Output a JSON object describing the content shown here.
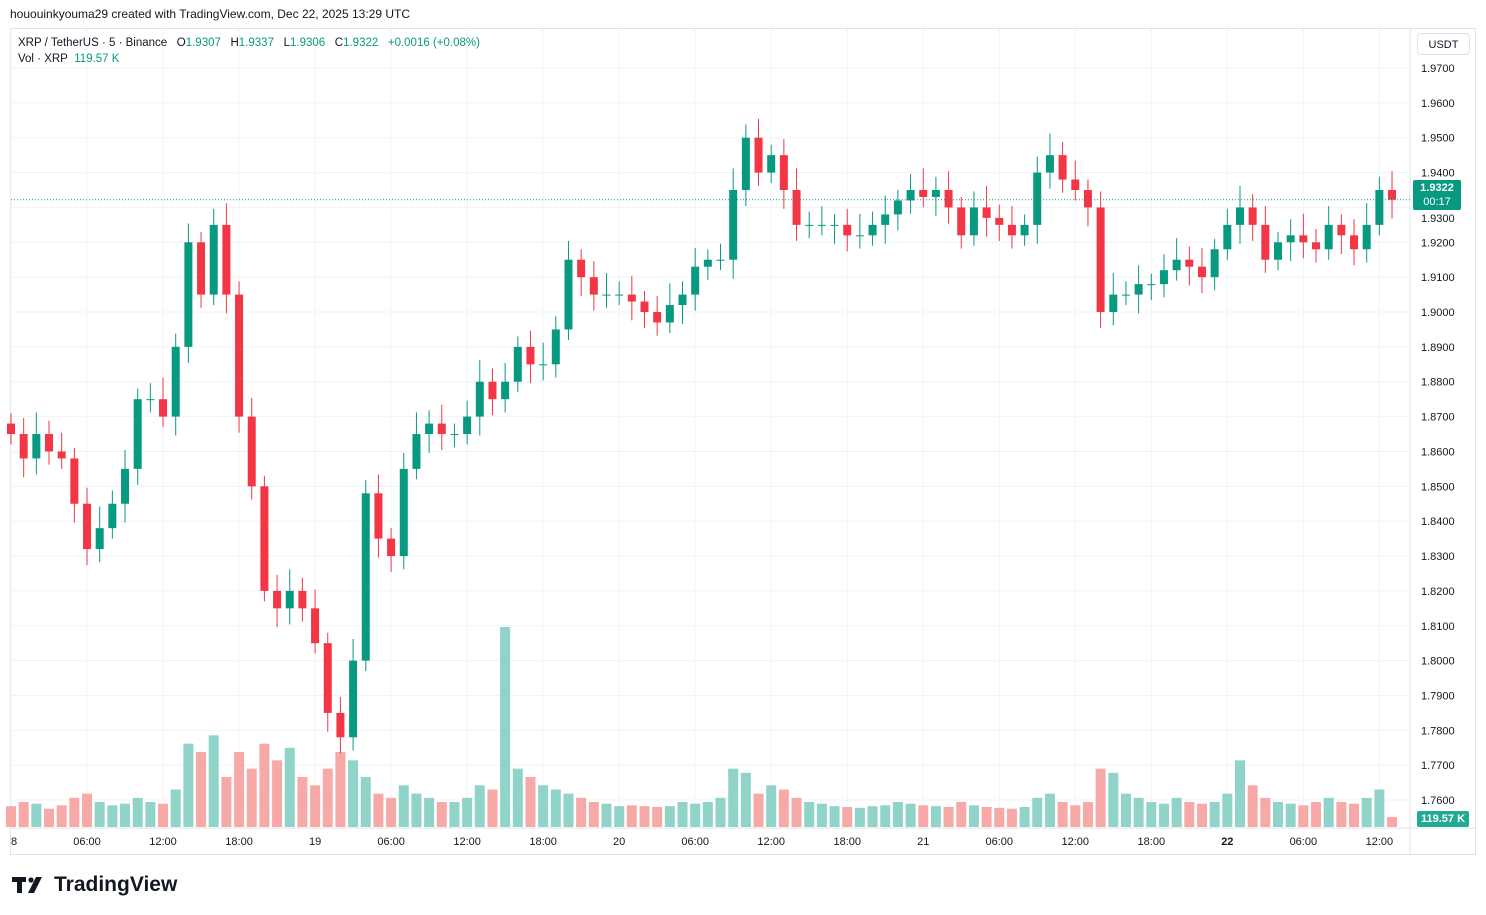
{
  "credit": "hououinkyouma29 created with TradingView.com, Dec 22, 2025 13:29 UTC",
  "legend": {
    "symbol": "XRP / TetherUS · 5 · Binance",
    "o_label": "O",
    "o": "1.9307",
    "h_label": "H",
    "h": "1.9337",
    "l_label": "L",
    "l": "1.9306",
    "c_label": "C",
    "c": "1.9322",
    "change": "+0.0016 (+0.08%)",
    "vol_label": "Vol · XRP",
    "vol": "119.57 K"
  },
  "currency": "USDT",
  "current_price": "1.9322",
  "countdown": "00:17",
  "volume_label": "119.57 K",
  "logo": "TradingView",
  "colors": {
    "up": "#089981",
    "down": "#f23645",
    "vol_up": "#8fd3c9",
    "vol_down": "#f7a9a7"
  },
  "chart_data": {
    "type": "candlestick",
    "note_resolution": "hourly approximation",
    "ylim": [
      1.755,
      1.975
    ],
    "y_ticks": [
      "1.9700",
      "1.9600",
      "1.9500",
      "1.9400",
      "1.9300",
      "1.9200",
      "1.9100",
      "1.9000",
      "1.8900",
      "1.8800",
      "1.8700",
      "1.8600",
      "1.8500",
      "1.8400",
      "1.8300",
      "1.8200",
      "1.8100",
      "1.8000",
      "1.7900",
      "1.7800",
      "1.7700",
      "1.7600"
    ],
    "x_ticks": [
      "8",
      "06:00",
      "12:00",
      "18:00",
      "19",
      "06:00",
      "12:00",
      "18:00",
      "20",
      "06:00",
      "12:00",
      "18:00",
      "21",
      "06:00",
      "12:00",
      "18:00",
      "22",
      "06:00",
      "12:00"
    ],
    "closes": [
      1.865,
      1.858,
      1.865,
      1.86,
      1.858,
      1.845,
      1.832,
      1.838,
      1.845,
      1.855,
      1.875,
      1.875,
      1.87,
      1.89,
      1.92,
      1.905,
      1.925,
      1.905,
      1.87,
      1.85,
      1.82,
      1.815,
      1.82,
      1.815,
      1.805,
      1.785,
      1.778,
      1.8,
      1.848,
      1.835,
      1.83,
      1.855,
      1.865,
      1.868,
      1.865,
      1.865,
      1.87,
      1.88,
      1.875,
      1.88,
      1.89,
      1.885,
      1.885,
      1.895,
      1.915,
      1.91,
      1.905,
      1.905,
      1.905,
      1.903,
      1.9,
      1.897,
      1.902,
      1.905,
      1.913,
      1.915,
      1.915,
      1.935,
      1.95,
      1.94,
      1.945,
      1.935,
      1.925,
      1.925,
      1.925,
      1.925,
      1.922,
      1.922,
      1.925,
      1.928,
      1.932,
      1.935,
      1.933,
      1.935,
      1.93,
      1.922,
      1.93,
      1.927,
      1.925,
      1.922,
      1.925,
      1.94,
      1.945,
      1.938,
      1.935,
      1.93,
      1.9,
      1.905,
      1.905,
      1.908,
      1.908,
      1.912,
      1.915,
      1.913,
      1.91,
      1.918,
      1.925,
      1.93,
      1.925,
      1.915,
      1.92,
      1.922,
      1.92,
      1.918,
      1.925,
      1.922,
      1.918,
      1.925,
      1.935,
      1.9322
    ],
    "volumes_k": [
      250,
      300,
      280,
      220,
      260,
      350,
      400,
      300,
      260,
      280,
      350,
      300,
      280,
      450,
      1000,
      900,
      1100,
      600,
      900,
      700,
      1000,
      800,
      950,
      600,
      500,
      700,
      900,
      800,
      600,
      400,
      350,
      500,
      400,
      350,
      300,
      300,
      350,
      500,
      450,
      2400,
      700,
      600,
      500,
      450,
      400,
      350,
      300,
      280,
      250,
      260,
      250,
      240,
      250,
      300,
      280,
      300,
      350,
      700,
      650,
      400,
      500,
      450,
      350,
      300,
      280,
      250,
      240,
      230,
      250,
      260,
      300,
      280,
      260,
      250,
      240,
      300,
      260,
      240,
      230,
      220,
      240,
      350,
      400,
      300,
      260,
      300,
      700,
      650,
      400,
      350,
      300,
      280,
      350,
      300,
      280,
      300,
      400,
      800,
      500,
      350,
      300,
      280,
      260,
      300,
      350,
      300,
      280,
      350,
      450,
      120
    ]
  }
}
